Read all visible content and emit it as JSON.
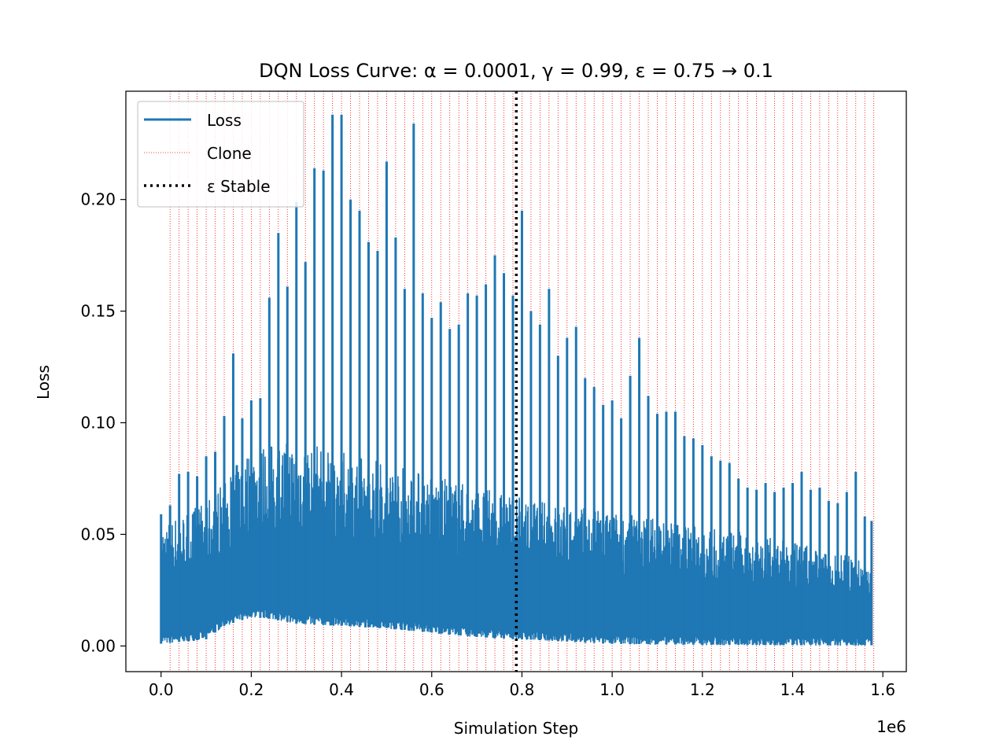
{
  "chart_data": {
    "type": "line",
    "title": "DQN Loss Curve: α = 0.0001, γ = 0.99, ε = 0.75 → 0.1",
    "xlabel": "Simulation Step",
    "ylabel": "Loss",
    "x_multiplier_label": "1e6",
    "xlim": [
      -0.078,
      1.652
    ],
    "ylim": [
      -0.0115,
      0.2485
    ],
    "x_scale": 1000000,
    "x_ticks": [
      0.0,
      0.2,
      0.4,
      0.6,
      0.8,
      1.0,
      1.2,
      1.4,
      1.6
    ],
    "x_tick_labels": [
      "0.0",
      "0.2",
      "0.4",
      "0.6",
      "0.8",
      "1.0",
      "1.2",
      "1.4",
      "1.6"
    ],
    "y_ticks": [
      0.0,
      0.05,
      0.1,
      0.15,
      0.2
    ],
    "y_tick_labels": [
      "0.00",
      "0.05",
      "0.10",
      "0.15",
      "0.20"
    ],
    "grid": false,
    "legend": {
      "position": "top-left",
      "entries": [
        "Loss",
        "Clone",
        "ε Stable"
      ]
    },
    "colors": {
      "loss": "#1f77b4",
      "clone": "#ff0000",
      "epsilon_stable": "#000000"
    },
    "series": [
      {
        "name": "Loss",
        "kind": "oscillating-line",
        "x_range": [
          0.0,
          1.575
        ],
        "peaks": [
          [
            0.0,
            0.059
          ],
          [
            0.02,
            0.063
          ],
          [
            0.04,
            0.077
          ],
          [
            0.06,
            0.078
          ],
          [
            0.08,
            0.076
          ],
          [
            0.1,
            0.085
          ],
          [
            0.12,
            0.087
          ],
          [
            0.14,
            0.103
          ],
          [
            0.16,
            0.131
          ],
          [
            0.18,
            0.102
          ],
          [
            0.2,
            0.11
          ],
          [
            0.22,
            0.111
          ],
          [
            0.24,
            0.156
          ],
          [
            0.26,
            0.185
          ],
          [
            0.28,
            0.161
          ],
          [
            0.3,
            0.199
          ],
          [
            0.32,
            0.172
          ],
          [
            0.34,
            0.214
          ],
          [
            0.36,
            0.213
          ],
          [
            0.38,
            0.238
          ],
          [
            0.4,
            0.238
          ],
          [
            0.42,
            0.2
          ],
          [
            0.44,
            0.195
          ],
          [
            0.46,
            0.181
          ],
          [
            0.48,
            0.177
          ],
          [
            0.5,
            0.217
          ],
          [
            0.52,
            0.183
          ],
          [
            0.54,
            0.16
          ],
          [
            0.56,
            0.234
          ],
          [
            0.58,
            0.158
          ],
          [
            0.6,
            0.147
          ],
          [
            0.62,
            0.154
          ],
          [
            0.64,
            0.142
          ],
          [
            0.66,
            0.144
          ],
          [
            0.68,
            0.158
          ],
          [
            0.7,
            0.157
          ],
          [
            0.72,
            0.162
          ],
          [
            0.74,
            0.175
          ],
          [
            0.76,
            0.167
          ],
          [
            0.78,
            0.157
          ],
          [
            0.8,
            0.195
          ],
          [
            0.82,
            0.15
          ],
          [
            0.84,
            0.144
          ],
          [
            0.86,
            0.16
          ],
          [
            0.88,
            0.13
          ],
          [
            0.9,
            0.138
          ],
          [
            0.92,
            0.143
          ],
          [
            0.94,
            0.12
          ],
          [
            0.96,
            0.116
          ],
          [
            0.98,
            0.108
          ],
          [
            1.0,
            0.11
          ],
          [
            1.02,
            0.102
          ],
          [
            1.04,
            0.121
          ],
          [
            1.06,
            0.138
          ],
          [
            1.08,
            0.112
          ],
          [
            1.1,
            0.104
          ],
          [
            1.12,
            0.105
          ],
          [
            1.14,
            0.105
          ],
          [
            1.16,
            0.094
          ],
          [
            1.18,
            0.093
          ],
          [
            1.2,
            0.09
          ],
          [
            1.22,
            0.085
          ],
          [
            1.24,
            0.083
          ],
          [
            1.26,
            0.082
          ],
          [
            1.28,
            0.075
          ],
          [
            1.3,
            0.071
          ],
          [
            1.32,
            0.07
          ],
          [
            1.34,
            0.073
          ],
          [
            1.36,
            0.069
          ],
          [
            1.38,
            0.071
          ],
          [
            1.4,
            0.073
          ],
          [
            1.42,
            0.078
          ],
          [
            1.44,
            0.07
          ],
          [
            1.46,
            0.071
          ],
          [
            1.48,
            0.065
          ],
          [
            1.5,
            0.064
          ],
          [
            1.52,
            0.069
          ],
          [
            1.54,
            0.078
          ],
          [
            1.56,
            0.058
          ],
          [
            1.575,
            0.056
          ]
        ],
        "floor": [
          [
            0.0,
            0.001
          ],
          [
            0.05,
            0.002
          ],
          [
            0.1,
            0.003
          ],
          [
            0.14,
            0.009
          ],
          [
            0.2,
            0.013
          ],
          [
            0.25,
            0.012
          ],
          [
            0.3,
            0.01
          ],
          [
            0.4,
            0.009
          ],
          [
            0.5,
            0.008
          ],
          [
            0.6,
            0.006
          ],
          [
            0.7,
            0.004
          ],
          [
            0.8,
            0.003
          ],
          [
            0.9,
            0.002
          ],
          [
            1.0,
            0.001
          ],
          [
            1.2,
            0.0005
          ],
          [
            1.575,
            0.0003
          ]
        ],
        "band_top": [
          [
            0.0,
            0.052
          ],
          [
            0.1,
            0.062
          ],
          [
            0.2,
            0.085
          ],
          [
            0.3,
            0.088
          ],
          [
            0.4,
            0.083
          ],
          [
            0.5,
            0.079
          ],
          [
            0.6,
            0.073
          ],
          [
            0.7,
            0.068
          ],
          [
            0.8,
            0.063
          ],
          [
            0.9,
            0.06
          ],
          [
            1.0,
            0.057
          ],
          [
            1.1,
            0.055
          ],
          [
            1.2,
            0.052
          ],
          [
            1.3,
            0.048
          ],
          [
            1.4,
            0.044
          ],
          [
            1.5,
            0.04
          ],
          [
            1.575,
            0.036
          ]
        ]
      },
      {
        "name": "Clone",
        "kind": "vertical-lines",
        "interval": 0.02,
        "start": 0.02,
        "end": 1.58
      },
      {
        "name": "ε Stable",
        "kind": "vertical-line",
        "x": 0.7875
      }
    ]
  }
}
